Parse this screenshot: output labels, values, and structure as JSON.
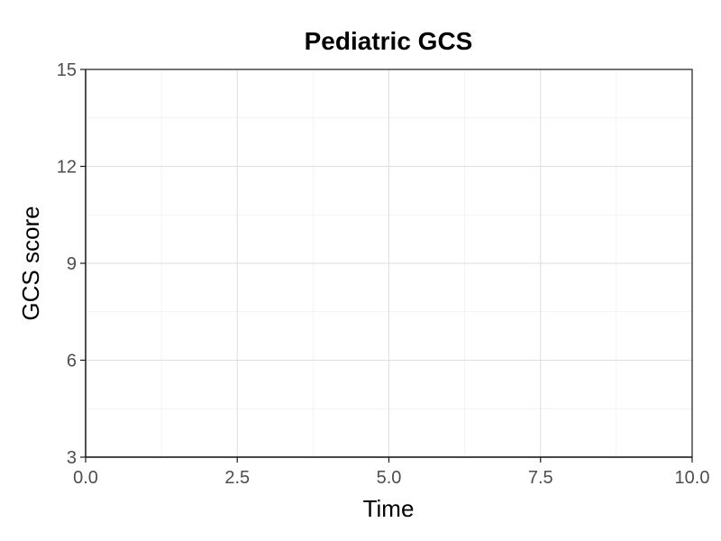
{
  "chart_data": {
    "type": "line",
    "title": "Pediatric GCS",
    "xlabel": "Time",
    "ylabel": "GCS score",
    "xlim": [
      0,
      10
    ],
    "ylim": [
      3,
      15
    ],
    "x_ticks": [
      0,
      2.5,
      5,
      7.5,
      10
    ],
    "x_tick_labels": [
      "0.0",
      "2.5",
      "5.0",
      "7.5",
      "10.0"
    ],
    "y_ticks": [
      3,
      6,
      9,
      12,
      15
    ],
    "y_tick_labels": [
      "3",
      "6",
      "9",
      "12",
      "15"
    ],
    "x_minor_ticks": [
      1.25,
      3.75,
      6.25,
      8.75
    ],
    "y_minor_ticks": [
      4.5,
      7.5,
      10.5,
      13.5
    ],
    "grid": true,
    "series": []
  }
}
